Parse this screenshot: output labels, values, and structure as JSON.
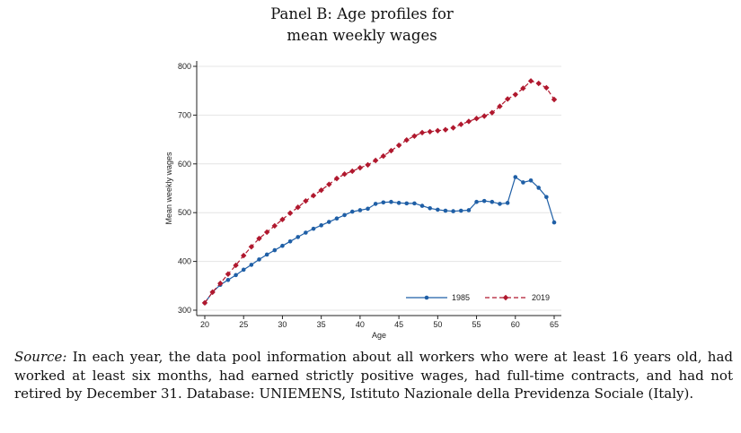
{
  "chart_data": {
    "type": "line",
    "title_lines": [
      "Panel B: Age profiles for",
      "mean weekly wages"
    ],
    "xlabel": "Age",
    "ylabel": "Mean weekly wages",
    "xlim": [
      20,
      65
    ],
    "ylim": [
      300,
      800
    ],
    "xticks": [
      20,
      25,
      30,
      35,
      40,
      45,
      50,
      55,
      60,
      65
    ],
    "yticks": [
      300,
      400,
      500,
      600,
      700,
      800
    ],
    "grid": true,
    "legend_placement": "bottom-right",
    "x": [
      20,
      21,
      22,
      23,
      24,
      25,
      26,
      27,
      28,
      29,
      30,
      31,
      32,
      33,
      34,
      35,
      36,
      37,
      38,
      39,
      40,
      41,
      42,
      43,
      44,
      45,
      46,
      47,
      48,
      49,
      50,
      51,
      52,
      53,
      54,
      55,
      56,
      57,
      58,
      59,
      60,
      61,
      62,
      63,
      64,
      65
    ],
    "series": [
      {
        "name": "1985",
        "color": "#1f5fa6",
        "style": "solid",
        "marker": "circle",
        "values": [
          315,
          337,
          352,
          362,
          372,
          383,
          393,
          404,
          414,
          423,
          432,
          441,
          450,
          459,
          467,
          474,
          481,
          488,
          495,
          502,
          505,
          508,
          518,
          521,
          522,
          520,
          519,
          519,
          514,
          509,
          506,
          504,
          503,
          504,
          505,
          522,
          524,
          522,
          518,
          520,
          573,
          562,
          566,
          551,
          532,
          480
        ]
      },
      {
        "name": "2019",
        "color": "#b0182e",
        "style": "dashed",
        "marker": "diamond",
        "values": [
          315,
          337,
          355,
          374,
          392,
          412,
          430,
          447,
          460,
          473,
          486,
          499,
          511,
          524,
          535,
          546,
          558,
          570,
          579,
          585,
          592,
          598,
          607,
          616,
          627,
          638,
          649,
          657,
          664,
          666,
          668,
          670,
          674,
          681,
          687,
          693,
          698,
          705,
          718,
          733,
          742,
          755,
          770,
          765,
          756,
          732
        ]
      }
    ]
  },
  "caption": {
    "source_label": "Source:",
    "text": " In each year, the data pool information about all workers who were at least 16 years old, had worked at least six months, had earned strictly positive wages, had full-time contracts, and had not retired by December 31. Database: UNIEMENS, Istituto Nazionale della Previdenza Sociale (Italy)."
  }
}
